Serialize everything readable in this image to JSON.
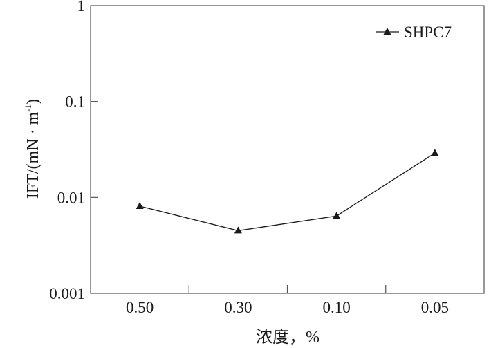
{
  "chart_data": {
    "type": "line",
    "title": "",
    "xlabel": "浓度，%",
    "ylabel": "IFT/(mN · m⁻¹)",
    "ylabel_main": "IFT/(mN · m",
    "ylabel_sup": "-1",
    "ylabel_close": ")",
    "yscale": "log",
    "ylim": [
      0.001,
      1
    ],
    "yticks": [
      "0.001",
      "0.01",
      "0.1",
      "1"
    ],
    "categories": [
      "0.50",
      "0.30",
      "0.10",
      "0.05"
    ],
    "grid": false,
    "legend_position": "top-right",
    "series": [
      {
        "name": "SHPC7",
        "marker": "triangle",
        "color": "#1a1a1a",
        "values": [
          0.0081,
          0.0045,
          0.0064,
          0.029
        ]
      }
    ]
  }
}
